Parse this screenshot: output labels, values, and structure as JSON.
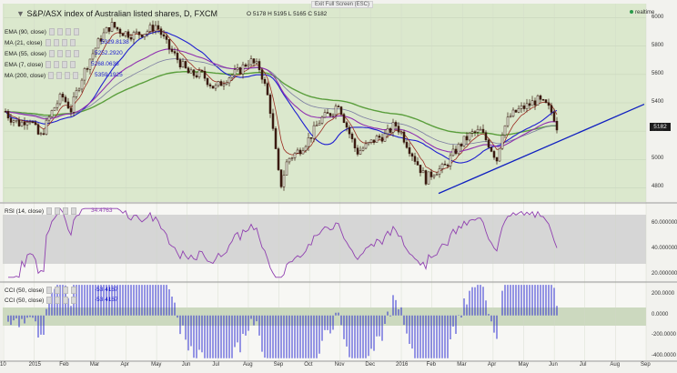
{
  "toolbar": {
    "exit_label": "Exit Full Screen (ESC)"
  },
  "header": {
    "title": "S&P/ASX index of Australian listed shares, D, FXCM",
    "ohlc": "O 5178  H 5195  L 5165  C 5182",
    "realtime_label": "realtime"
  },
  "colors": {
    "panel_bg": "#dbe8cd",
    "rsi_band": "#d6d6d6",
    "cci_band": "#ccd9bf",
    "candle": "#3a1a10",
    "ema90": "#5a9e3c",
    "ma21": "#1f1fd0",
    "ema55": "#7a7aa0",
    "ema7": "#9a2a20",
    "ma200": "#9030b0",
    "rsi": "#9040b0",
    "cci": "#1a1ad0",
    "trendline": "#1020c0",
    "badge": "#1a1a1a"
  },
  "indicators": [
    {
      "label": "EMA (90, close)",
      "value": ""
    },
    {
      "label": "MA (21, close)",
      "value": "5329.8138"
    },
    {
      "label": "EMA (55, close)",
      "value": "5252.2920"
    },
    {
      "label": "EMA (7, close)",
      "value": "5268.0636"
    },
    {
      "label": "MA (200, close)",
      "value": "5359.1925"
    }
  ],
  "rsi": {
    "label": "RSI (14, close)",
    "value": "34.4763"
  },
  "cci": [
    {
      "label": "CCI (50, close)",
      "value": "-53.4167"
    },
    {
      "label": "CCI (50, close)",
      "value": "-53.4167"
    }
  ],
  "last_price": "5182",
  "chart_data": {
    "type": "candlestick",
    "title": "S&P/ASX index of Australian listed shares, D, FXCM",
    "x_tick_labels": [
      "10",
      "2015",
      "Feb",
      "Mar",
      "Apr",
      "May",
      "Jun",
      "Jul",
      "Aug",
      "Sep",
      "Oct",
      "Nov",
      "Dec",
      "2016",
      "Feb",
      "Mar",
      "Apr",
      "May",
      "Jun",
      "Jul",
      "Aug",
      "Sep"
    ],
    "price_axis": {
      "ticks": [
        4800,
        5000,
        5200,
        5400,
        5600,
        5800,
        6000
      ],
      "ylim": [
        4700,
        6100
      ]
    },
    "rsi_axis": {
      "ticks": [
        20,
        40,
        60
      ],
      "ylim": [
        15,
        75
      ],
      "band": [
        30,
        70
      ]
    },
    "cci_axis": {
      "ticks": [
        -400,
        -200,
        0,
        200
      ],
      "ylim": [
        -440,
        310
      ],
      "band": [
        -100,
        100
      ]
    },
    "price_path": [
      [
        0,
        5400
      ],
      [
        10,
        5300
      ],
      [
        22,
        5250
      ],
      [
        32,
        5300
      ],
      [
        44,
        5150
      ],
      [
        58,
        5350
      ],
      [
        68,
        5450
      ],
      [
        78,
        5350
      ],
      [
        88,
        5550
      ],
      [
        98,
        5700
      ],
      [
        110,
        5850
      ],
      [
        122,
        5950
      ],
      [
        134,
        5900
      ],
      [
        146,
        5880
      ],
      [
        160,
        5900
      ],
      [
        172,
        5950
      ],
      [
        184,
        5800
      ],
      [
        196,
        5700
      ],
      [
        208,
        5600
      ],
      [
        222,
        5600
      ],
      [
        236,
        5500
      ],
      [
        250,
        5580
      ],
      [
        262,
        5620
      ],
      [
        274,
        5700
      ],
      [
        286,
        5640
      ],
      [
        296,
        5400
      ],
      [
        304,
        5000
      ],
      [
        308,
        4800
      ],
      [
        316,
        5000
      ],
      [
        328,
        5060
      ],
      [
        340,
        5150
      ],
      [
        352,
        5280
      ],
      [
        364,
        5330
      ],
      [
        372,
        5400
      ],
      [
        380,
        5250
      ],
      [
        392,
        5050
      ],
      [
        404,
        5100
      ],
      [
        414,
        5150
      ],
      [
        424,
        5170
      ],
      [
        434,
        5250
      ],
      [
        440,
        5200
      ],
      [
        448,
        5100
      ],
      [
        458,
        4980
      ],
      [
        468,
        4860
      ],
      [
        478,
        4920
      ],
      [
        488,
        4940
      ],
      [
        498,
        5040
      ],
      [
        508,
        5120
      ],
      [
        518,
        5180
      ],
      [
        528,
        5200
      ],
      [
        538,
        5100
      ],
      [
        546,
        5000
      ],
      [
        552,
        5200
      ],
      [
        560,
        5300
      ],
      [
        570,
        5350
      ],
      [
        580,
        5380
      ],
      [
        590,
        5420
      ],
      [
        600,
        5380
      ],
      [
        608,
        5320
      ],
      [
        614,
        5190
      ]
    ],
    "trendline": [
      [
        482,
        4760
      ],
      [
        708,
        5390
      ]
    ]
  }
}
